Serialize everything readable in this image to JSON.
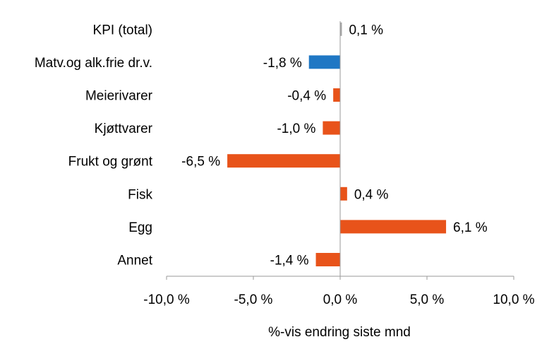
{
  "chart_data": {
    "type": "bar",
    "orientation": "horizontal",
    "categories": [
      "KPI (total)",
      "Matv.og alk.frie dr.v.",
      "Meierivarer",
      "Kjøttvarer",
      "Frukt og grønt",
      "Fisk",
      "Egg",
      "Annet"
    ],
    "values": [
      0.1,
      -1.8,
      -0.4,
      -1.0,
      -6.5,
      0.4,
      6.1,
      -1.4
    ],
    "data_labels": [
      "0,1 %",
      "-1,8 %",
      "-0,4 %",
      "-1,0 %",
      "-6,5 %",
      "0,4 %",
      "6,1 %",
      "-1,4 %"
    ],
    "bar_colors": [
      "#A5A5A5",
      "#1F77C4",
      "#E8531A",
      "#E8531A",
      "#E8531A",
      "#E8531A",
      "#E8531A",
      "#E8531A"
    ],
    "xlim": [
      -10,
      10
    ],
    "xticks": [
      -10,
      -5,
      0,
      5,
      10
    ],
    "xtick_labels": [
      "-10,0 %",
      "-5,0 %",
      "0,0 %",
      "5,0 %",
      "10,0 %"
    ],
    "xlabel": "%-vis endring siste mnd",
    "title": "",
    "ylabel": "",
    "grid": false,
    "legend": "none"
  }
}
